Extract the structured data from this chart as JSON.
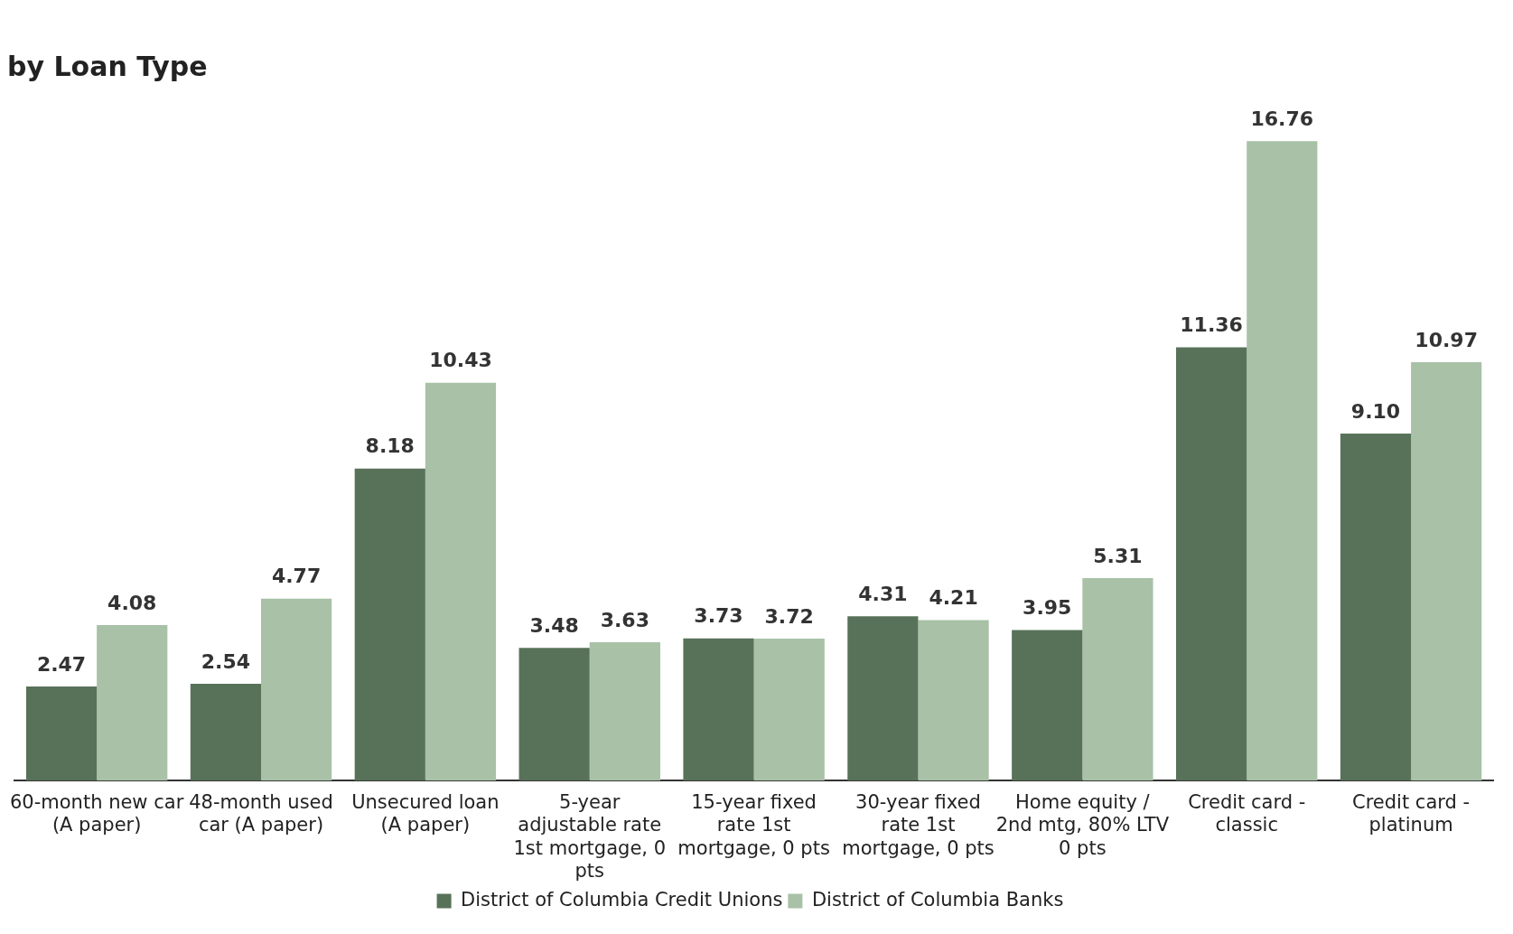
{
  "chart_data": {
    "type": "bar",
    "title": "by Loan Type",
    "categories": [
      "60-month new car (A paper)",
      "48-month used car (A paper)",
      "Unsecured loan (A paper)",
      "5-year adjustable rate 1st mortgage, 0 pts",
      "15-year fixed rate 1st mortgage, 0 pts",
      "30-year fixed rate 1st mortgage, 0 pts",
      "Home equity / 2nd mtg, 80% LTV 0 pts",
      "Credit card - classic",
      "Credit card - platinum"
    ],
    "series": [
      {
        "name": "District of Columbia Credit Unions",
        "color": "#587259",
        "values": [
          2.47,
          2.54,
          8.18,
          3.48,
          3.73,
          4.31,
          3.95,
          11.36,
          9.1
        ],
        "value_labels": [
          "2.47",
          "2.54",
          "8.18",
          "3.48",
          "3.73",
          "4.31",
          "3.95",
          "11.36",
          "9.10"
        ]
      },
      {
        "name": "District of Columbia Banks",
        "color": "#a8c1a7",
        "values": [
          4.08,
          4.77,
          10.43,
          3.63,
          3.72,
          4.21,
          5.31,
          16.76,
          10.97
        ],
        "value_labels": [
          "4.08",
          "4.77",
          "10.43",
          "3.63",
          "3.72",
          "4.21",
          "5.31",
          "16.76",
          "10.97"
        ]
      }
    ],
    "legend": "bottom"
  }
}
